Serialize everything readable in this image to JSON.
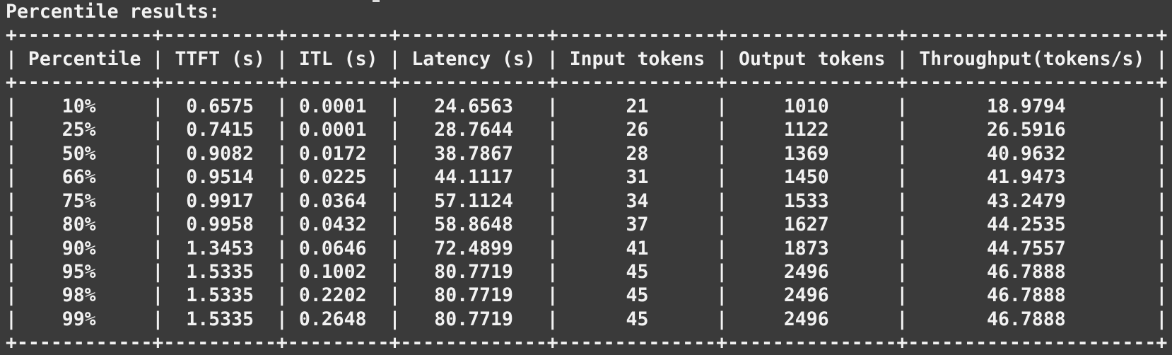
{
  "colors": {
    "background": "#3a3a3a",
    "text": "#f2f2f2"
  },
  "terminal": {
    "title": "Percentile results:",
    "table": {
      "columns": [
        "Percentile",
        "TTFT (s)",
        "ITL (s)",
        "Latency (s)",
        "Input tokens",
        "Output tokens",
        "Throughput(tokens/s)"
      ],
      "rows": [
        [
          "10%",
          "0.6575",
          "0.0001",
          "24.6563",
          "21",
          "1010",
          "18.9794"
        ],
        [
          "25%",
          "0.7415",
          "0.0001",
          "28.7644",
          "26",
          "1122",
          "26.5916"
        ],
        [
          "50%",
          "0.9082",
          "0.0172",
          "38.7867",
          "28",
          "1369",
          "40.9632"
        ],
        [
          "66%",
          "0.9514",
          "0.0225",
          "44.1117",
          "31",
          "1450",
          "41.9473"
        ],
        [
          "75%",
          "0.9917",
          "0.0364",
          "57.1124",
          "34",
          "1533",
          "43.2479"
        ],
        [
          "80%",
          "0.9958",
          "0.0432",
          "58.8648",
          "37",
          "1627",
          "44.2535"
        ],
        [
          "90%",
          "1.3453",
          "0.0646",
          "72.4899",
          "41",
          "1873",
          "44.7557"
        ],
        [
          "95%",
          "1.5335",
          "0.1002",
          "80.7719",
          "45",
          "2496",
          "46.7888"
        ],
        [
          "98%",
          "1.5335",
          "0.2202",
          "80.7719",
          "45",
          "2496",
          "46.7888"
        ],
        [
          "99%",
          "1.5335",
          "0.2648",
          "80.7719",
          "45",
          "2496",
          "46.7888"
        ]
      ]
    }
  }
}
